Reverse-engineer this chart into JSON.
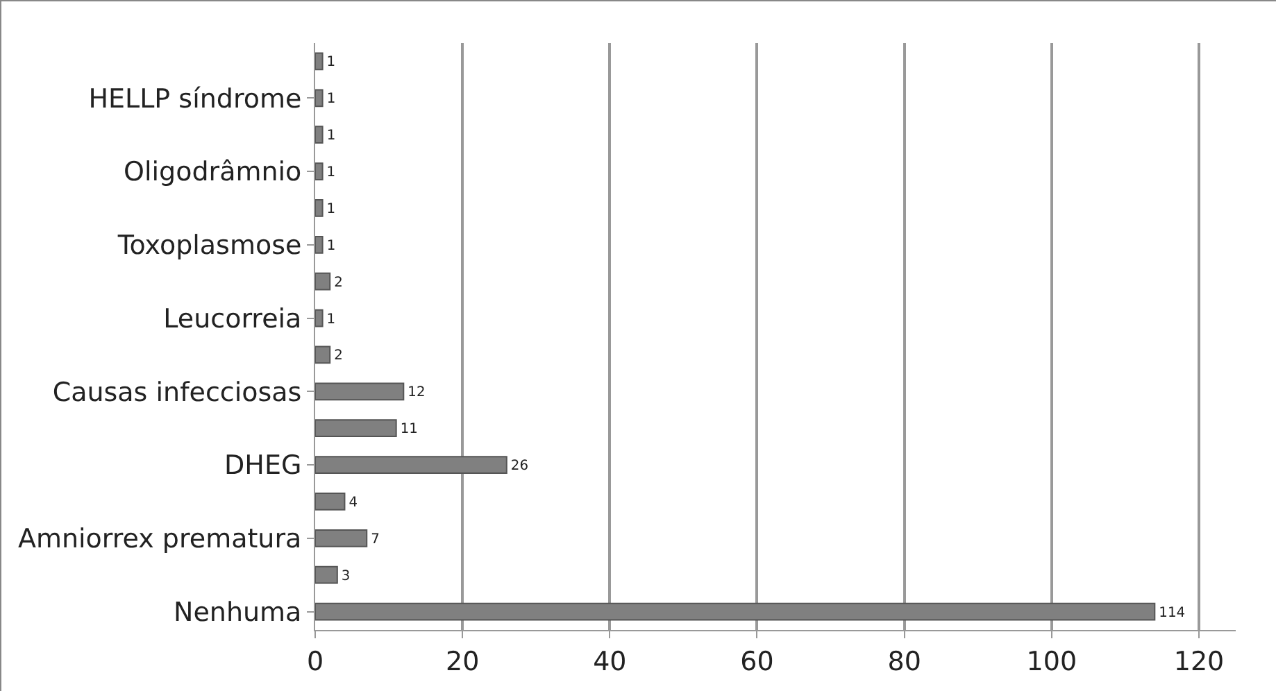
{
  "chart_data": {
    "type": "bar",
    "orientation": "horizontal",
    "categories": [
      null,
      "HELLP síndrome",
      null,
      "Oligodrâmnio",
      null,
      "Toxoplasmose",
      null,
      "Leucorreia",
      null,
      "Causas infecciosas",
      null,
      "DHEG",
      null,
      "Amniorrex prematura",
      null,
      "Nenhuma"
    ],
    "values": [
      1,
      1,
      1,
      1,
      1,
      1,
      2,
      1,
      2,
      12,
      11,
      26,
      4,
      7,
      3,
      114
    ],
    "color": "#808080",
    "xlim": [
      0,
      125
    ],
    "xticks": [
      0,
      20,
      40,
      60,
      80,
      100,
      120
    ],
    "grid": "x",
    "data_labels": true,
    "legend": false
  }
}
